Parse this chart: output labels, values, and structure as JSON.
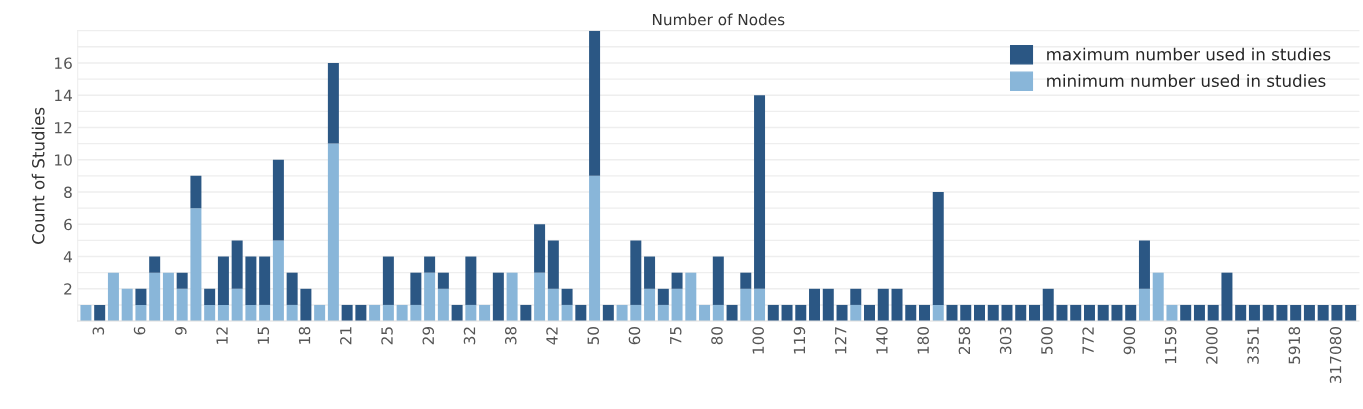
{
  "chart_data": {
    "type": "bar",
    "title": "Number of Nodes",
    "ylabel": "Count of Studies",
    "stacked": true,
    "categories": [
      null,
      "3",
      null,
      null,
      "6",
      null,
      null,
      "9",
      null,
      null,
      "12",
      null,
      null,
      "15",
      null,
      null,
      "18",
      null,
      null,
      "21",
      null,
      null,
      "25",
      null,
      null,
      "29",
      null,
      null,
      "32",
      null,
      null,
      "38",
      null,
      null,
      "42",
      null,
      null,
      "50",
      null,
      null,
      "60",
      null,
      null,
      "75",
      null,
      null,
      "80",
      null,
      null,
      "100",
      null,
      null,
      "119",
      null,
      null,
      "127",
      null,
      null,
      "140",
      null,
      null,
      "180",
      null,
      null,
      "258",
      null,
      null,
      "303",
      null,
      null,
      "500",
      null,
      null,
      "772",
      null,
      null,
      "900",
      null,
      null,
      "1159",
      null,
      null,
      "2000",
      null,
      null,
      "3351",
      null,
      null,
      "5918",
      null,
      null,
      "317080",
      null
    ],
    "series": [
      {
        "name": "minimum number used in studies",
        "color": "#89b6d9",
        "values": [
          1,
          0,
          3,
          2,
          1,
          3,
          3,
          2,
          7,
          1,
          1,
          2,
          1,
          1,
          5,
          1,
          0,
          1,
          11,
          0,
          0,
          1,
          1,
          1,
          1,
          3,
          2,
          0,
          1,
          1,
          0,
          3,
          0,
          3,
          2,
          1,
          0,
          9,
          0,
          1,
          1,
          2,
          1,
          2,
          3,
          1,
          1,
          0,
          2,
          2,
          0,
          0,
          0,
          0,
          0,
          0,
          1,
          0,
          0,
          0,
          0,
          0,
          1,
          0,
          0,
          0,
          0,
          0,
          0,
          0,
          0,
          0,
          0,
          0,
          0,
          0,
          0,
          2,
          3,
          1,
          0,
          0,
          0,
          0,
          0,
          0,
          0,
          0,
          0,
          0,
          0,
          0,
          0
        ]
      },
      {
        "name": "maximum number used in studies",
        "color": "#2b5784",
        "values": [
          0,
          1,
          0,
          0,
          1,
          1,
          0,
          1,
          2,
          1,
          3,
          3,
          3,
          3,
          5,
          2,
          2,
          0,
          5,
          1,
          1,
          0,
          3,
          0,
          2,
          1,
          1,
          1,
          3,
          0,
          3,
          0,
          1,
          3,
          3,
          1,
          1,
          9,
          1,
          0,
          4,
          2,
          1,
          1,
          0,
          0,
          3,
          1,
          1,
          12,
          1,
          1,
          1,
          2,
          2,
          1,
          1,
          1,
          2,
          2,
          1,
          1,
          7,
          1,
          1,
          1,
          1,
          1,
          1,
          1,
          2,
          1,
          1,
          1,
          1,
          1,
          1,
          3,
          0,
          0,
          1,
          1,
          1,
          3,
          1,
          1,
          1,
          1,
          1,
          1,
          1,
          1,
          1
        ]
      }
    ],
    "ylim": [
      0,
      18
    ],
    "yticks": [
      {
        "value": 1,
        "label": null
      },
      2,
      {
        "value": 3,
        "label": null
      },
      4,
      {
        "value": 5,
        "label": null
      },
      6,
      {
        "value": 7,
        "label": null
      },
      8,
      {
        "value": 9,
        "label": null
      },
      10,
      {
        "value": 11,
        "label": null
      },
      12,
      {
        "value": 13,
        "label": null
      },
      14,
      {
        "value": 15,
        "label": null
      },
      16,
      {
        "value": 17,
        "label": null
      },
      {
        "value": 18,
        "label": null
      }
    ],
    "grid": "y",
    "legend": "top right"
  }
}
